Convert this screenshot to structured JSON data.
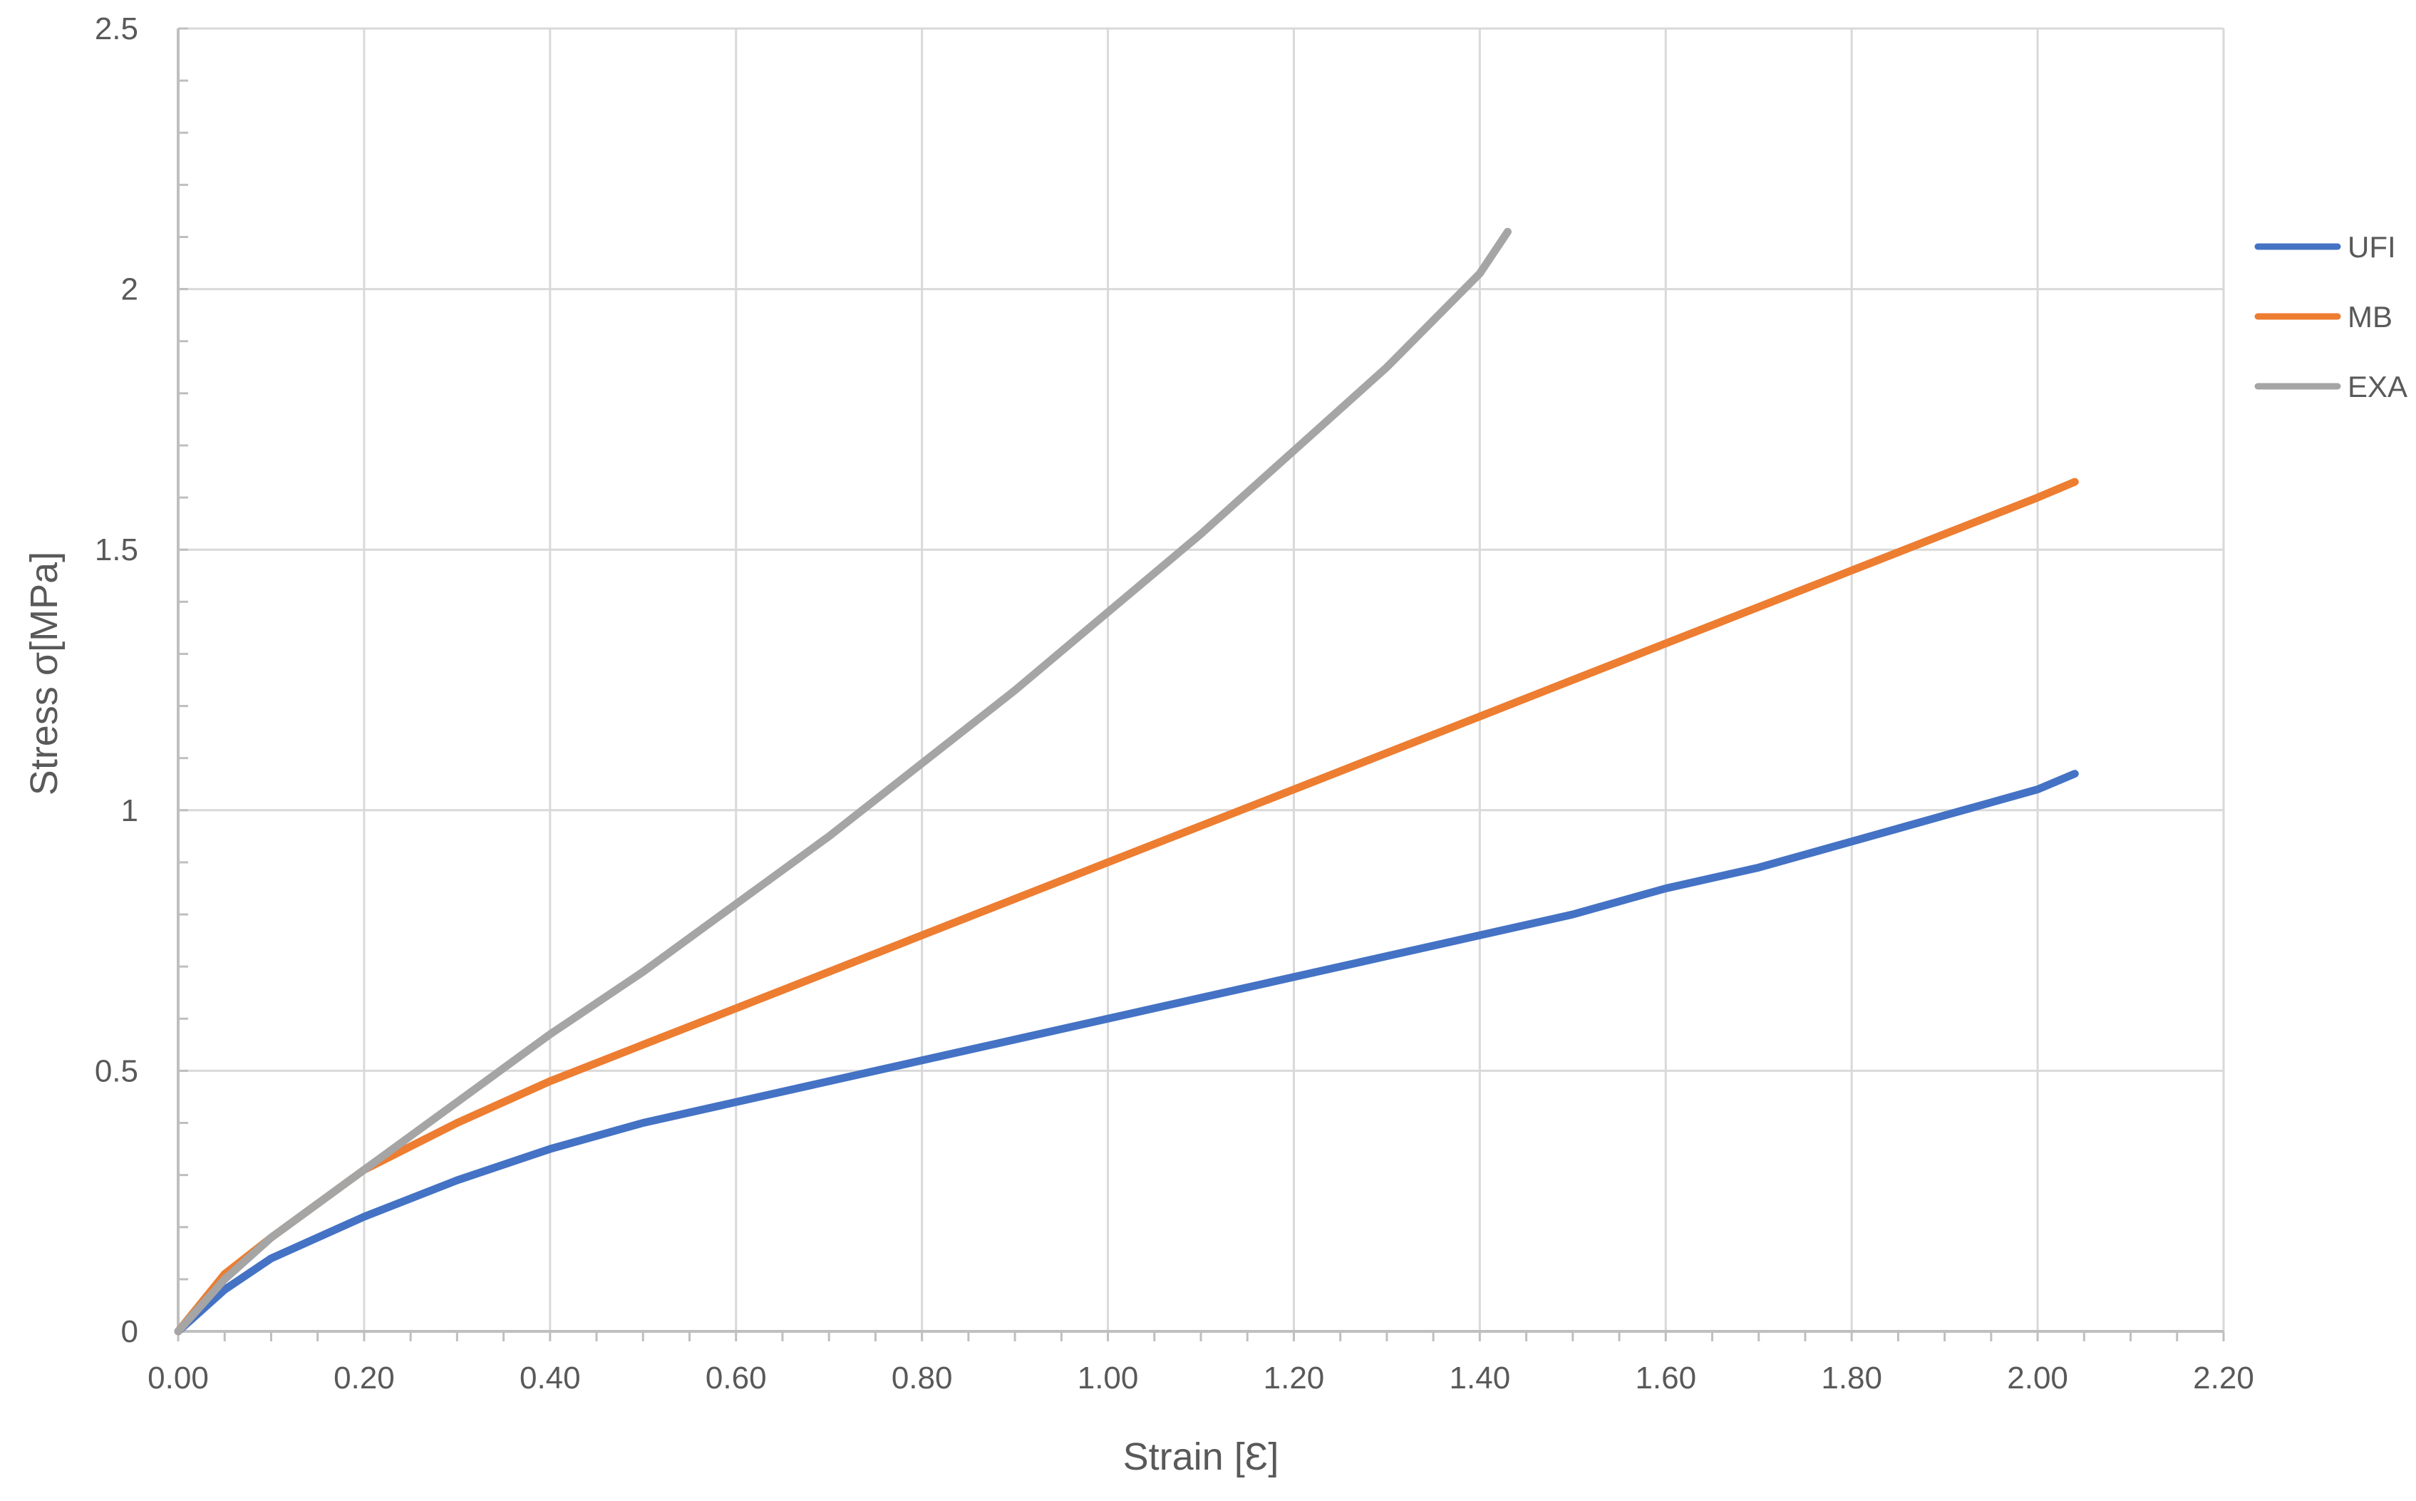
{
  "chart_data": {
    "type": "line",
    "title": "",
    "xlabel": "Strain [Ɛ]",
    "ylabel": "Stress σ[MPa]",
    "xlim": [
      0,
      2.2
    ],
    "ylim": [
      0,
      2.5
    ],
    "x_ticks": [
      0,
      0.2,
      0.4,
      0.6,
      0.8,
      1.0,
      1.2,
      1.4,
      1.6,
      1.8,
      2.0,
      2.2
    ],
    "x_tick_labels": [
      "0.00",
      "0.20",
      "0.40",
      "0.60",
      "0.80",
      "1.00",
      "1.20",
      "1.40",
      "1.60",
      "1.80",
      "2.00",
      "2.20"
    ],
    "y_ticks": [
      0,
      0.5,
      1,
      1.5,
      2,
      2.5
    ],
    "y_tick_labels": [
      "0",
      "0.5",
      "1",
      "1.5",
      "2",
      "2.5"
    ],
    "grid": true,
    "legend_position": "right",
    "series": [
      {
        "name": "UFI",
        "color": "#4472C4",
        "x": [
          0,
          0.05,
          0.1,
          0.2,
          0.3,
          0.4,
          0.5,
          0.6,
          0.7,
          0.8,
          0.9,
          1.0,
          1.1,
          1.2,
          1.3,
          1.4,
          1.5,
          1.6,
          1.7,
          1.8,
          1.9,
          2.0,
          2.04
        ],
        "y": [
          0,
          0.08,
          0.14,
          0.22,
          0.29,
          0.35,
          0.4,
          0.44,
          0.48,
          0.52,
          0.56,
          0.6,
          0.64,
          0.68,
          0.72,
          0.76,
          0.8,
          0.85,
          0.89,
          0.94,
          0.99,
          1.04,
          1.07
        ]
      },
      {
        "name": "MB",
        "color": "#ED7D31",
        "x": [
          0,
          0.05,
          0.1,
          0.2,
          0.3,
          0.4,
          0.5,
          0.6,
          0.7,
          0.8,
          0.9,
          1.0,
          1.1,
          1.2,
          1.3,
          1.4,
          1.5,
          1.6,
          1.7,
          1.8,
          1.9,
          2.0,
          2.04
        ],
        "y": [
          0,
          0.11,
          0.18,
          0.31,
          0.4,
          0.48,
          0.55,
          0.62,
          0.69,
          0.76,
          0.83,
          0.9,
          0.97,
          1.04,
          1.11,
          1.18,
          1.25,
          1.32,
          1.39,
          1.46,
          1.53,
          1.6,
          1.63
        ]
      },
      {
        "name": "EXA",
        "color": "#A5A5A5",
        "x": [
          0,
          0.05,
          0.1,
          0.2,
          0.3,
          0.4,
          0.5,
          0.6,
          0.7,
          0.8,
          0.9,
          1.0,
          1.1,
          1.2,
          1.3,
          1.4,
          1.43
        ],
        "y": [
          0,
          0.1,
          0.18,
          0.31,
          0.44,
          0.57,
          0.69,
          0.82,
          0.95,
          1.09,
          1.23,
          1.38,
          1.53,
          1.69,
          1.85,
          2.03,
          2.11
        ]
      }
    ]
  }
}
